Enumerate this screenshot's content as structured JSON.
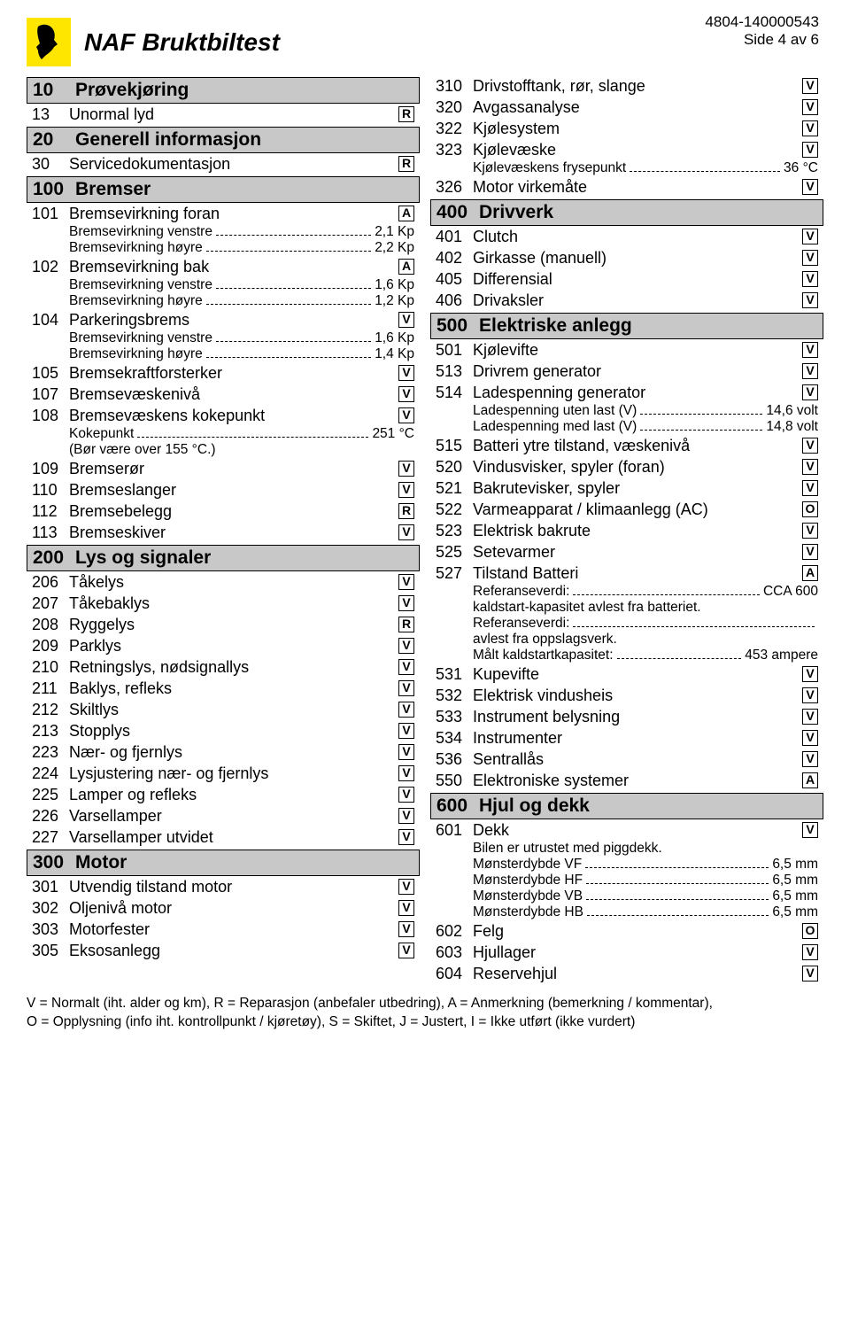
{
  "header": {
    "title": "NAF Bruktbiltest",
    "ref": "4804-140000543",
    "page": "Side 4 av 6"
  },
  "left": [
    {
      "type": "section",
      "num": "10",
      "label": "Prøvekjøring"
    },
    {
      "type": "row",
      "num": "13",
      "label": "Unormal lyd",
      "box": "R"
    },
    {
      "type": "section",
      "num": "20",
      "label": "Generell informasjon"
    },
    {
      "type": "row",
      "num": "30",
      "label": "Servicedokumentasjon",
      "box": "R"
    },
    {
      "type": "section",
      "num": "100",
      "label": "Bremser"
    },
    {
      "type": "row",
      "num": "101",
      "label": "Bremsevirkning foran",
      "box": "A"
    },
    {
      "type": "sub",
      "label": "Bremsevirkning venstre",
      "val": "2,1 Kp"
    },
    {
      "type": "sub",
      "label": "Bremsevirkning høyre",
      "val": "2,2 Kp"
    },
    {
      "type": "row",
      "num": "102",
      "label": "Bremsevirkning bak",
      "box": "A"
    },
    {
      "type": "sub",
      "label": "Bremsevirkning venstre",
      "val": "1,6 Kp"
    },
    {
      "type": "sub",
      "label": "Bremsevirkning høyre",
      "val": "1,2 Kp"
    },
    {
      "type": "row",
      "num": "104",
      "label": "Parkeringsbrems",
      "box": "V"
    },
    {
      "type": "sub",
      "label": "Bremsevirkning venstre",
      "val": "1,6 Kp"
    },
    {
      "type": "sub",
      "label": "Bremsevirkning høyre",
      "val": "1,4 Kp"
    },
    {
      "type": "row",
      "num": "105",
      "label": "Bremsekraftforsterker",
      "box": "V"
    },
    {
      "type": "row",
      "num": "107",
      "label": "Bremsevæskenivå",
      "box": "V"
    },
    {
      "type": "row",
      "num": "108",
      "label": "Bremsevæskens kokepunkt",
      "box": "V"
    },
    {
      "type": "sub",
      "label": "Kokepunkt",
      "val": "251 °C"
    },
    {
      "type": "sub",
      "label": "(Bør være over 155 °C.)",
      "nodots": true
    },
    {
      "type": "row",
      "num": "109",
      "label": "Bremserør",
      "box": "V"
    },
    {
      "type": "row",
      "num": "110",
      "label": "Bremseslanger",
      "box": "V"
    },
    {
      "type": "row",
      "num": "112",
      "label": "Bremsebelegg",
      "box": "R"
    },
    {
      "type": "row",
      "num": "113",
      "label": "Bremseskiver",
      "box": "V"
    },
    {
      "type": "section",
      "num": "200",
      "label": "Lys og signaler"
    },
    {
      "type": "row",
      "num": "206",
      "label": "Tåkelys",
      "box": "V"
    },
    {
      "type": "row",
      "num": "207",
      "label": "Tåkebaklys",
      "box": "V"
    },
    {
      "type": "row",
      "num": "208",
      "label": "Ryggelys",
      "box": "R"
    },
    {
      "type": "row",
      "num": "209",
      "label": "Parklys",
      "box": "V"
    },
    {
      "type": "row",
      "num": "210",
      "label": "Retningslys,  nødsignallys",
      "box": "V"
    },
    {
      "type": "row",
      "num": "211",
      "label": "Baklys, refleks",
      "box": "V"
    },
    {
      "type": "row",
      "num": "212",
      "label": "Skiltlys",
      "box": "V"
    },
    {
      "type": "row",
      "num": "213",
      "label": "Stopplys",
      "box": "V"
    },
    {
      "type": "row",
      "num": "223",
      "label": "Nær- og fjernlys",
      "box": "V"
    },
    {
      "type": "row",
      "num": "224",
      "label": "Lysjustering nær- og fjernlys",
      "box": "V"
    },
    {
      "type": "row",
      "num": "225",
      "label": "Lamper og refleks",
      "box": "V"
    },
    {
      "type": "row",
      "num": "226",
      "label": "Varsellamper",
      "box": "V"
    },
    {
      "type": "row",
      "num": "227",
      "label": "Varsellamper utvidet",
      "box": "V"
    },
    {
      "type": "section",
      "num": "300",
      "label": "Motor"
    },
    {
      "type": "row",
      "num": "301",
      "label": "Utvendig tilstand motor",
      "box": "V"
    },
    {
      "type": "row",
      "num": "302",
      "label": "Oljenivå motor",
      "box": "V"
    },
    {
      "type": "row",
      "num": "303",
      "label": "Motorfester",
      "box": "V"
    },
    {
      "type": "row",
      "num": "305",
      "label": "Eksosanlegg",
      "box": "V"
    }
  ],
  "right": [
    {
      "type": "row",
      "num": "310",
      "label": "Drivstofftank, rør, slange",
      "box": "V"
    },
    {
      "type": "row",
      "num": "320",
      "label": "Avgassanalyse",
      "box": "V"
    },
    {
      "type": "row",
      "num": "322",
      "label": "Kjølesystem",
      "box": "V"
    },
    {
      "type": "row",
      "num": "323",
      "label": "Kjølevæske",
      "box": "V"
    },
    {
      "type": "sub",
      "label": "Kjølevæskens frysepunkt",
      "val": "36 °C"
    },
    {
      "type": "row",
      "num": "326",
      "label": "Motor virkemåte",
      "box": "V"
    },
    {
      "type": "section",
      "num": "400",
      "label": "Drivverk"
    },
    {
      "type": "row",
      "num": "401",
      "label": "Clutch",
      "box": "V"
    },
    {
      "type": "row",
      "num": "402",
      "label": "Girkasse (manuell)",
      "box": "V"
    },
    {
      "type": "row",
      "num": "405",
      "label": "Differensial",
      "box": "V"
    },
    {
      "type": "row",
      "num": "406",
      "label": "Drivaksler",
      "box": "V"
    },
    {
      "type": "section",
      "num": "500",
      "label": "Elektriske anlegg"
    },
    {
      "type": "row",
      "num": "501",
      "label": "Kjølevifte",
      "box": "V"
    },
    {
      "type": "row",
      "num": "513",
      "label": "Drivrem generator",
      "box": "V"
    },
    {
      "type": "row",
      "num": "514",
      "label": "Ladespenning generator",
      "box": "V"
    },
    {
      "type": "sub",
      "label": "Ladespenning uten last (V)",
      "val": "14,6 volt"
    },
    {
      "type": "sub",
      "label": "Ladespenning med last (V)",
      "val": "14,8 volt"
    },
    {
      "type": "row",
      "num": "515",
      "label": "Batteri ytre tilstand, væskenivå",
      "box": "V"
    },
    {
      "type": "row",
      "num": "520",
      "label": "Vindusvisker, spyler (foran)",
      "box": "V"
    },
    {
      "type": "row",
      "num": "521",
      "label": "Bakrutevisker, spyler",
      "box": "V"
    },
    {
      "type": "row",
      "num": "522",
      "label": "Varmeapparat / klimaanlegg (AC)",
      "box": "O"
    },
    {
      "type": "row",
      "num": "523",
      "label": "Elektrisk bakrute",
      "box": "V"
    },
    {
      "type": "row",
      "num": "525",
      "label": "Setevarmer",
      "box": "V"
    },
    {
      "type": "row",
      "num": "527",
      "label": "Tilstand Batteri",
      "box": "A"
    },
    {
      "type": "sub",
      "label": "Referanseverdi:",
      "val": "CCA 600"
    },
    {
      "type": "sub",
      "label": "kaldstart-kapasitet avlest fra batteriet.",
      "nodots": true
    },
    {
      "type": "sub",
      "label": "Referanseverdi:",
      "val": ""
    },
    {
      "type": "sub",
      "label": "avlest fra oppslagsverk.",
      "nodots": true
    },
    {
      "type": "sub",
      "label": "Målt kaldstartkapasitet:",
      "val": "453 ampere"
    },
    {
      "type": "row",
      "num": "531",
      "label": "Kupevifte",
      "box": "V"
    },
    {
      "type": "row",
      "num": "532",
      "label": "Elektrisk vindusheis",
      "box": "V"
    },
    {
      "type": "row",
      "num": "533",
      "label": "Instrument belysning",
      "box": "V"
    },
    {
      "type": "row",
      "num": "534",
      "label": "Instrumenter",
      "box": "V"
    },
    {
      "type": "row",
      "num": "536",
      "label": "Sentrallås",
      "box": "V"
    },
    {
      "type": "row",
      "num": "550",
      "label": "Elektroniske systemer",
      "box": "A"
    },
    {
      "type": "section",
      "num": "600",
      "label": "Hjul og dekk"
    },
    {
      "type": "row",
      "num": "601",
      "label": "Dekk",
      "box": "V"
    },
    {
      "type": "sub",
      "label": "Bilen er utrustet med piggdekk.",
      "nodots": true
    },
    {
      "type": "sub",
      "label": "Mønsterdybde VF",
      "val": "6,5 mm"
    },
    {
      "type": "sub",
      "label": "Mønsterdybde HF",
      "val": "6,5 mm"
    },
    {
      "type": "sub",
      "label": "Mønsterdybde VB",
      "val": "6,5 mm"
    },
    {
      "type": "sub",
      "label": "Mønsterdybde HB",
      "val": "6,5 mm"
    },
    {
      "type": "row",
      "num": "602",
      "label": "Felg",
      "box": "O"
    },
    {
      "type": "row",
      "num": "603",
      "label": "Hjullager",
      "box": "V"
    },
    {
      "type": "row",
      "num": "604",
      "label": "Reservehjul",
      "box": "V"
    }
  ],
  "footer": {
    "line1": "V = Normalt (iht. alder og km), R = Reparasjon (anbefaler utbedring), A = Anmerkning (bemerkning / kommentar),",
    "line2": "O = Opplysning (info iht. kontrollpunkt / kjøretøy), S = Skiftet, J = Justert, I = Ikke utført (ikke vurdert)"
  }
}
